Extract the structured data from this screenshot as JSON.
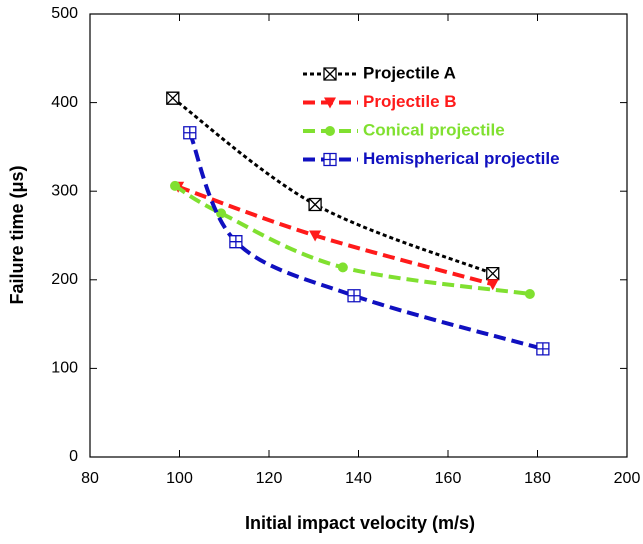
{
  "chart_data": {
    "type": "line",
    "xlabel": "Initial impact velocity (m/s)",
    "ylabel": "Failure time (μs)",
    "xlim": [
      80,
      200
    ],
    "xticks": [
      80,
      100,
      120,
      140,
      160,
      180,
      200
    ],
    "ylim": [
      0,
      500
    ],
    "yticks": [
      0,
      100,
      200,
      300,
      400,
      500
    ],
    "smooth": true,
    "series": [
      {
        "name": "Projectile A",
        "color": "#000000",
        "marker": "square-x",
        "dash": "short",
        "x": [
          98.5,
          130.3,
          170
        ],
        "values": [
          405,
          285,
          207
        ]
      },
      {
        "name": "Projectile B",
        "color": "#ff1a1a",
        "marker": "triangle-down",
        "dash": "long",
        "x": [
          99.7,
          130.3,
          170
        ],
        "values": [
          305,
          250,
          195
        ]
      },
      {
        "name": "Conical projectile",
        "color": "#80e030",
        "marker": "circle",
        "dash": "long",
        "x": [
          99,
          109.3,
          136.5,
          178.3
        ],
        "values": [
          306,
          275,
          214,
          184
        ]
      },
      {
        "name": "Hemispherical projectile",
        "color": "#1010c0",
        "marker": "square-plus",
        "dash": "long",
        "x": [
          102.3,
          112.6,
          139,
          181.2
        ],
        "values": [
          366,
          243,
          182,
          122
        ]
      }
    ]
  }
}
